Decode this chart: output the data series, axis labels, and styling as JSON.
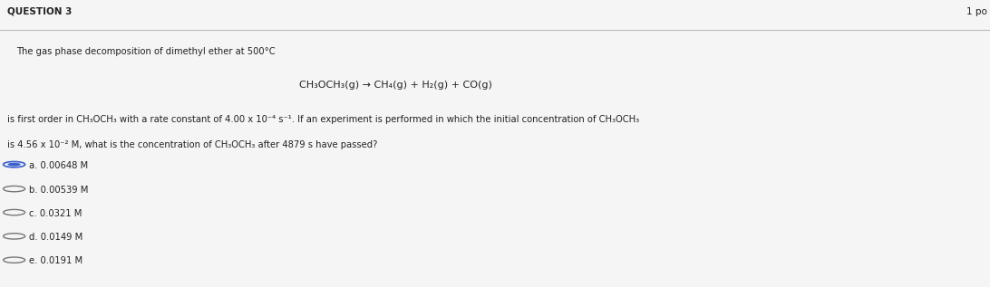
{
  "background_color": "#e8e8e8",
  "panel_color": "#f5f5f5",
  "question_label": "QUESTION 3",
  "points_label": "1 po",
  "intro_text": "The gas phase decomposition of dimethyl ether at 500°C",
  "equation": "CH₃OCH₃(g) → CH₄(g) + H₂(g) + CO(g)",
  "body_text_line1": "is first order in CH₃OCH₃ with a rate constant of 4.00 x 10⁻⁴ s⁻¹. If an experiment is performed in which the initial concentration of CH₃OCH₃",
  "body_text_line2": "is 4.56 x 10⁻² M, what is the concentration of CH₃OCH₃ after 4879 s have passed?",
  "choices": [
    {
      "label": "a.",
      "text": "0.00648 M",
      "selected": true
    },
    {
      "label": "b.",
      "text": "0.00539 M",
      "selected": false
    },
    {
      "label": "c.",
      "text": "0.0321 M",
      "selected": false
    },
    {
      "label": "d.",
      "text": "0.0149 M",
      "selected": false
    },
    {
      "label": "e.",
      "text": "0.0191 M",
      "selected": false
    }
  ],
  "selected_fill_color": "#3a5fcd",
  "selected_edge_color": "#3a5fcd",
  "unselected_edge_color": "#777777",
  "text_color": "#222222",
  "separator_color": "#bbbbbb",
  "question_font_size": 7.5,
  "body_font_size": 7.2,
  "equation_font_size": 8.0,
  "choice_font_size": 7.2
}
